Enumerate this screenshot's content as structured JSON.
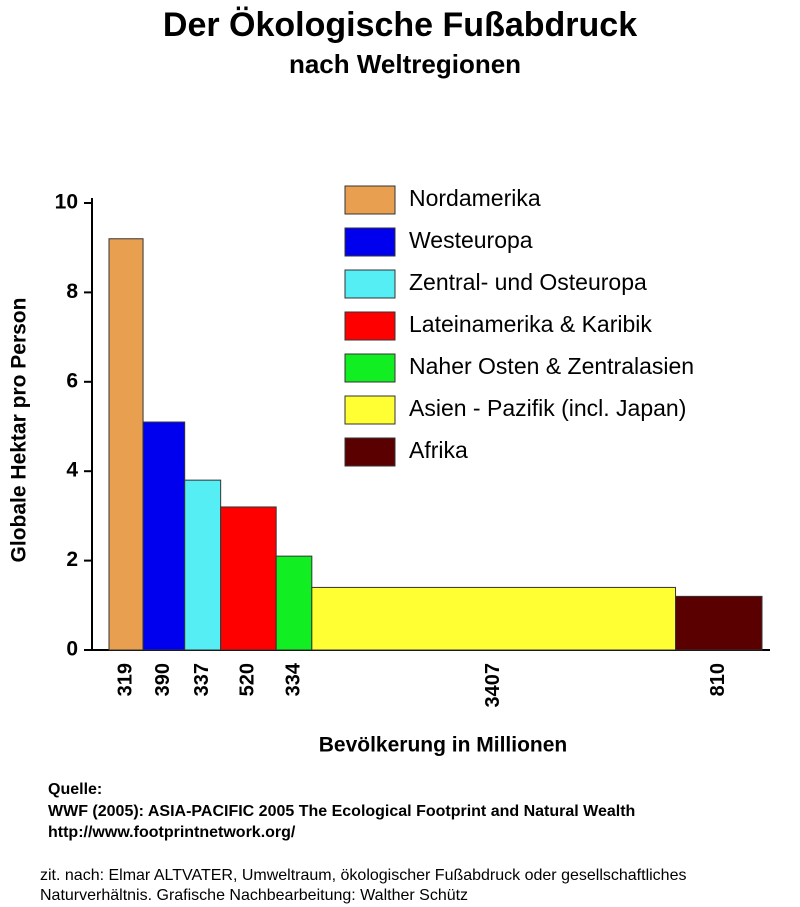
{
  "chart_data": {
    "type": "variable-width-bar",
    "title": "Der Ökologische Fußabdruck",
    "subtitle": "nach Weltregionen",
    "ylabel": "Globale Hektar pro Person",
    "xlabel": "Bevölkerung in Millionen",
    "categories": [
      "Nordamerika",
      "Westeuropa",
      "Zentral- und Osteuropa",
      "Lateinamerika & Karibik",
      "Naher Osten & Zentralasien",
      "Asien - Pazifik (incl.  Japan)",
      "Afrika"
    ],
    "values": [
      9.2,
      5.1,
      3.8,
      3.2,
      2.1,
      1.4,
      1.2
    ],
    "widths": [
      319,
      390,
      337,
      520,
      334,
      3407,
      810
    ],
    "colors": [
      "#e8a050",
      "#0000ee",
      "#55eef5",
      "#ff0000",
      "#11ee22",
      "#ffff33",
      "#5a0000"
    ],
    "ylim": [
      0,
      10
    ],
    "yticks": [
      0,
      2,
      4,
      6,
      8,
      10
    ]
  },
  "footer": {
    "heading": "Quelle:",
    "source": [
      "WWF (2005): ASIA-PACIFIC 2005 The Ecological Footprint and Natural Wealth",
      "http://www.footprintnetwork.org/"
    ],
    "citation": [
      "zit. nach: Elmar ALTVATER, Umweltraum, ökologischer Fußabdruck oder gesellschaftliches",
      "Naturverhältnis.  Grafische Nachbearbeitung: Walther Schütz"
    ]
  }
}
